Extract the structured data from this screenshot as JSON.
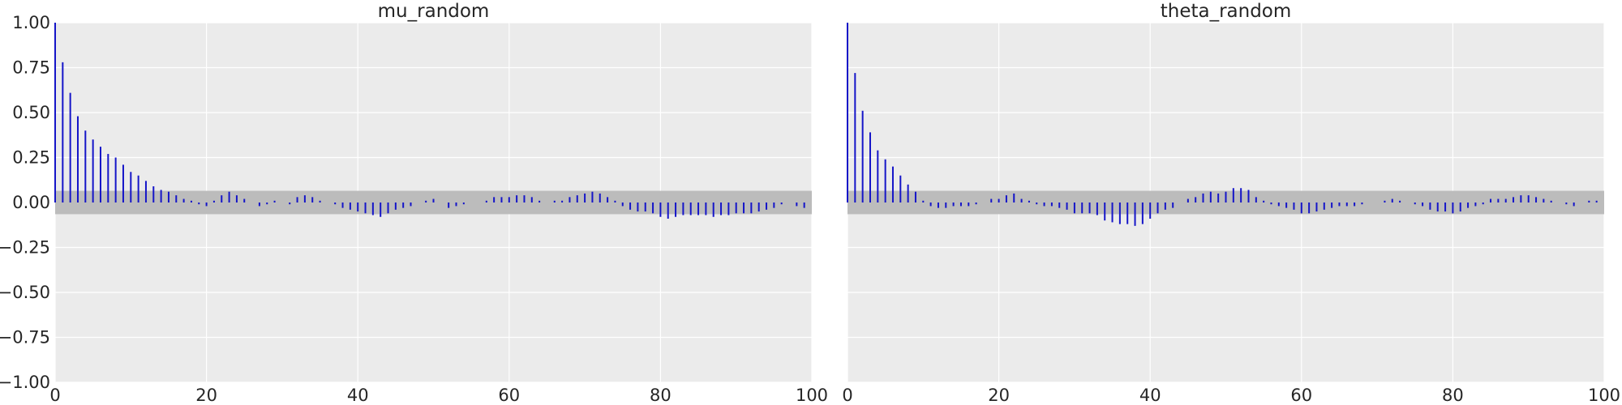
{
  "colors": {
    "background": "#ffffff",
    "plot_background": "#ebebeb",
    "grid": "#ffffff",
    "band": "#bcbcbc",
    "bars": "#1515c8",
    "text": "#262626"
  },
  "chart_data": [
    {
      "type": "bar",
      "title": "mu_random",
      "xlabel": "",
      "ylabel": "",
      "xlim": [
        0,
        100
      ],
      "ylim": [
        -1.0,
        1.0
      ],
      "grid": true,
      "confidence_band": [
        -0.065,
        0.065
      ],
      "x_ticks": [
        "0",
        "20",
        "40",
        "60",
        "80",
        "100"
      ],
      "y_ticks": [
        "1.00",
        "0.75",
        "0.50",
        "0.25",
        "0.00",
        "−0.25",
        "−0.50",
        "−0.75",
        "−1.00"
      ],
      "x": [
        0,
        1,
        2,
        3,
        4,
        5,
        6,
        7,
        8,
        9,
        10,
        11,
        12,
        13,
        14,
        15,
        16,
        17,
        18,
        19,
        20,
        21,
        22,
        23,
        24,
        25,
        26,
        27,
        28,
        29,
        30,
        31,
        32,
        33,
        34,
        35,
        36,
        37,
        38,
        39,
        40,
        41,
        42,
        43,
        44,
        45,
        46,
        47,
        48,
        49,
        50,
        51,
        52,
        53,
        54,
        55,
        56,
        57,
        58,
        59,
        60,
        61,
        62,
        63,
        64,
        65,
        66,
        67,
        68,
        69,
        70,
        71,
        72,
        73,
        74,
        75,
        76,
        77,
        78,
        79,
        80,
        81,
        82,
        83,
        84,
        85,
        86,
        87,
        88,
        89,
        90,
        91,
        92,
        93,
        94,
        95,
        96,
        97,
        98,
        99
      ],
      "values": [
        1.0,
        0.78,
        0.61,
        0.48,
        0.4,
        0.35,
        0.31,
        0.27,
        0.25,
        0.21,
        0.17,
        0.15,
        0.12,
        0.09,
        0.07,
        0.06,
        0.04,
        0.02,
        0.01,
        -0.01,
        -0.02,
        0.01,
        0.04,
        0.06,
        0.04,
        0.02,
        0.0,
        -0.02,
        -0.01,
        0.01,
        0.0,
        -0.01,
        0.03,
        0.04,
        0.03,
        0.01,
        0.0,
        -0.01,
        -0.03,
        -0.04,
        -0.05,
        -0.06,
        -0.07,
        -0.08,
        -0.06,
        -0.04,
        -0.03,
        -0.02,
        0.0,
        0.01,
        0.02,
        0.0,
        -0.03,
        -0.02,
        -0.01,
        0.0,
        0.0,
        0.01,
        0.03,
        0.03,
        0.03,
        0.04,
        0.04,
        0.03,
        0.01,
        0.0,
        0.01,
        0.01,
        0.03,
        0.04,
        0.05,
        0.06,
        0.05,
        0.03,
        0.01,
        -0.02,
        -0.04,
        -0.05,
        -0.05,
        -0.06,
        -0.08,
        -0.09,
        -0.08,
        -0.07,
        -0.07,
        -0.07,
        -0.07,
        -0.08,
        -0.07,
        -0.07,
        -0.06,
        -0.06,
        -0.06,
        -0.05,
        -0.04,
        -0.03,
        -0.01,
        0.0,
        -0.02,
        -0.03
      ]
    },
    {
      "type": "bar",
      "title": "theta_random",
      "xlabel": "",
      "ylabel": "",
      "xlim": [
        0,
        100
      ],
      "ylim": [
        -1.0,
        1.0
      ],
      "grid": true,
      "confidence_band": [
        -0.065,
        0.065
      ],
      "x_ticks": [
        "0",
        "20",
        "40",
        "60",
        "80",
        "100"
      ],
      "y_ticks": [],
      "x": [
        0,
        1,
        2,
        3,
        4,
        5,
        6,
        7,
        8,
        9,
        10,
        11,
        12,
        13,
        14,
        15,
        16,
        17,
        18,
        19,
        20,
        21,
        22,
        23,
        24,
        25,
        26,
        27,
        28,
        29,
        30,
        31,
        32,
        33,
        34,
        35,
        36,
        37,
        38,
        39,
        40,
        41,
        42,
        43,
        44,
        45,
        46,
        47,
        48,
        49,
        50,
        51,
        52,
        53,
        54,
        55,
        56,
        57,
        58,
        59,
        60,
        61,
        62,
        63,
        64,
        65,
        66,
        67,
        68,
        69,
        70,
        71,
        72,
        73,
        74,
        75,
        76,
        77,
        78,
        79,
        80,
        81,
        82,
        83,
        84,
        85,
        86,
        87,
        88,
        89,
        90,
        91,
        92,
        93,
        94,
        95,
        96,
        97,
        98,
        99
      ],
      "values": [
        1.0,
        0.72,
        0.51,
        0.39,
        0.29,
        0.24,
        0.2,
        0.15,
        0.1,
        0.06,
        0.01,
        -0.02,
        -0.03,
        -0.03,
        -0.02,
        -0.02,
        -0.02,
        -0.01,
        0.0,
        0.02,
        0.02,
        0.04,
        0.05,
        0.02,
        0.01,
        -0.01,
        -0.02,
        -0.02,
        -0.03,
        -0.04,
        -0.06,
        -0.06,
        -0.06,
        -0.07,
        -0.1,
        -0.11,
        -0.12,
        -0.12,
        -0.13,
        -0.12,
        -0.09,
        -0.06,
        -0.04,
        -0.03,
        0.0,
        0.02,
        0.03,
        0.05,
        0.06,
        0.05,
        0.06,
        0.08,
        0.08,
        0.07,
        0.03,
        0.01,
        -0.01,
        -0.02,
        -0.03,
        -0.04,
        -0.06,
        -0.06,
        -0.05,
        -0.04,
        -0.03,
        -0.02,
        -0.02,
        -0.02,
        -0.01,
        0.0,
        0.0,
        0.01,
        0.02,
        0.01,
        0.0,
        -0.01,
        -0.02,
        -0.04,
        -0.05,
        -0.05,
        -0.06,
        -0.05,
        -0.03,
        -0.02,
        -0.01,
        0.02,
        0.02,
        0.02,
        0.03,
        0.04,
        0.04,
        0.03,
        0.02,
        0.01,
        0.0,
        -0.01,
        -0.02,
        0.0,
        0.01,
        0.01
      ]
    }
  ]
}
